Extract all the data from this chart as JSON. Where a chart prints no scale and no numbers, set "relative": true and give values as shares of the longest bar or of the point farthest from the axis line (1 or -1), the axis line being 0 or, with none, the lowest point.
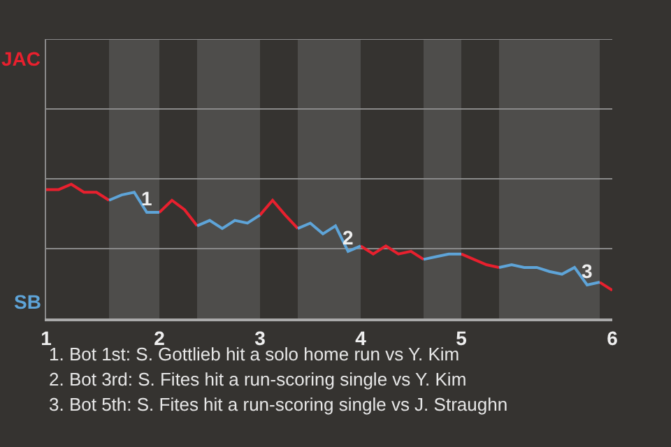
{
  "chart_data": {
    "type": "line",
    "relative": true,
    "categories": [
      "1",
      null,
      null,
      null,
      null,
      null,
      null,
      null,
      null,
      "2",
      null,
      null,
      null,
      null,
      null,
      null,
      null,
      "3",
      null,
      null,
      null,
      null,
      null,
      null,
      null,
      "4",
      null,
      null,
      null,
      null,
      null,
      null,
      null,
      "5",
      null,
      null,
      null,
      null,
      null,
      null,
      null,
      null,
      null,
      null,
      null,
      "6"
    ],
    "marker": "none",
    "line_style": "solid",
    "series": [
      {
        "color": "#e8202e",
        "values": [
          0.96,
          0.96,
          1,
          0.94,
          0.94,
          0.88,
          null,
          null,
          null,
          0.79,
          0.88,
          0.81,
          0.69,
          null,
          null,
          null,
          null,
          0.77,
          0.88,
          0.77,
          0.67,
          null,
          null,
          null,
          null,
          0.54,
          0.48,
          0.54,
          0.48,
          0.5,
          0.44,
          null,
          null,
          0.48,
          0.44,
          0.4,
          0.38,
          null,
          null,
          null,
          null,
          null,
          null,
          null,
          0.27,
          0.21
        ]
      },
      {
        "color": "#5ea4d8",
        "values": [
          null,
          null,
          null,
          null,
          null,
          0.88,
          0.92,
          0.94,
          0.79,
          0.79,
          null,
          null,
          0.69,
          0.73,
          0.67,
          0.73,
          0.71,
          0.77,
          null,
          null,
          0.67,
          0.71,
          0.63,
          0.69,
          0.5,
          0.54,
          null,
          null,
          null,
          null,
          0.44,
          0.46,
          0.48,
          0.48,
          null,
          null,
          0.38,
          0.4,
          0.38,
          0.38,
          0.35,
          0.33,
          0.38,
          0.25,
          0.27,
          null
        ]
      }
    ],
    "ref_lines": [
      {
        "axis": "y",
        "value": 0.52,
        "label": null,
        "color": "#8a8a8a"
      },
      {
        "axis": "y",
        "value": 1.04,
        "label": null,
        "color": "#8a8a8a"
      },
      {
        "axis": "y",
        "value": 1.56,
        "label": null,
        "color": "#8a8a8a"
      },
      {
        "axis": "y",
        "value": 2.08,
        "label": null,
        "color": "#8a8a8a"
      }
    ],
    "annotations": [
      "JAC",
      "SB",
      {
        "text": "1",
        "y": 0.79
      },
      {
        "text": "2",
        "y": 0.5
      },
      {
        "text": "3",
        "y": 0.25
      },
      "1. Bot 1st: S. Gottlieb hit a solo home run vs Y. Kim",
      "2. Bot 3rd: S. Fites hit a run-scoring single vs Y. Kim",
      "3. Bot 5th: S. Fites hit a run-scoring single vs J. Straughn"
    ]
  }
}
